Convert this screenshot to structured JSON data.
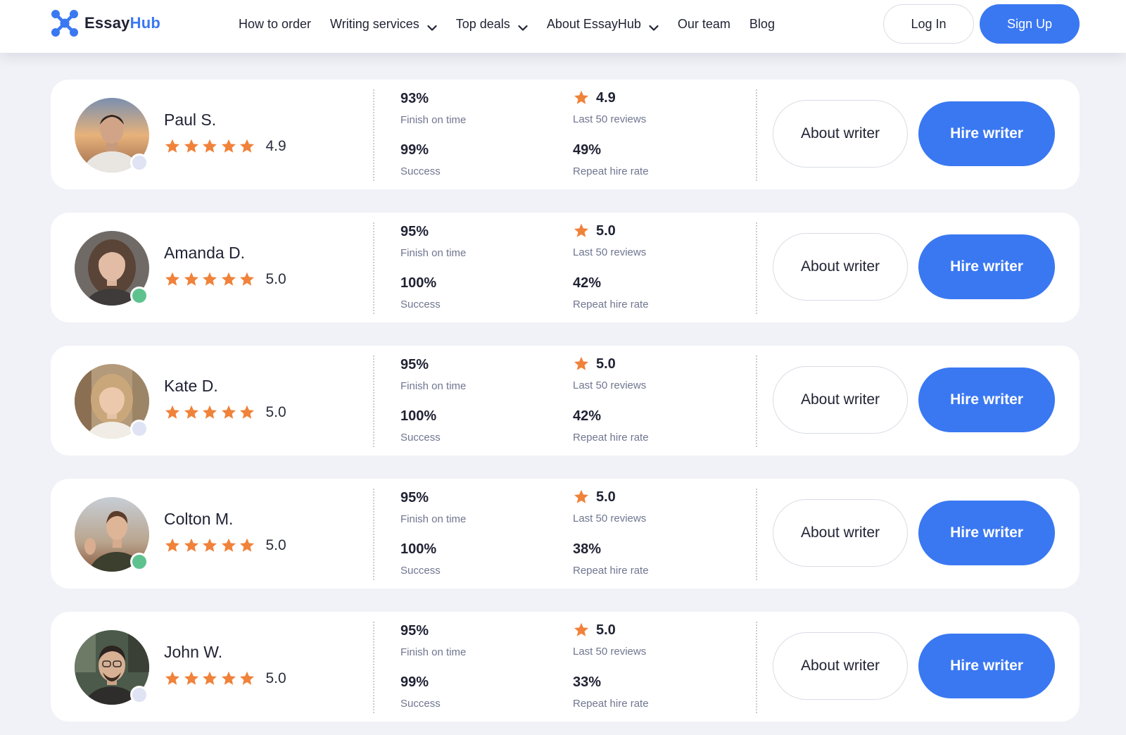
{
  "header": {
    "logo": {
      "word1": "Essay",
      "word2": "Hub"
    },
    "nav": [
      {
        "label": "How to order",
        "dropdown": false
      },
      {
        "label": "Writing services",
        "dropdown": true
      },
      {
        "label": "Top deals",
        "dropdown": true
      },
      {
        "label": "About EssayHub",
        "dropdown": true
      },
      {
        "label": "Our team",
        "dropdown": false
      },
      {
        "label": "Blog",
        "dropdown": false
      }
    ],
    "login_label": "Log In",
    "signup_label": "Sign Up"
  },
  "colors": {
    "accent": "#3a78f2",
    "star": "#f0823a",
    "online": "#5ec28f",
    "offline": "#dfe3f4"
  },
  "writers": [
    {
      "name": "Paul S.",
      "rating": "4.9",
      "stars": 5,
      "status": "offline",
      "finish_on_time": "93%",
      "finish_on_time_label": "Finish on time",
      "success": "99%",
      "success_label": "Success",
      "last_reviews": "4.9",
      "last_reviews_label": "Last 50 reviews",
      "repeat_hire": "49%",
      "repeat_hire_label": "Repeat hire rate",
      "about_label": "About writer",
      "hire_label": "Hire writer"
    },
    {
      "name": "Amanda D.",
      "rating": "5.0",
      "stars": 5,
      "status": "online",
      "finish_on_time": "95%",
      "finish_on_time_label": "Finish on time",
      "success": "100%",
      "success_label": "Success",
      "last_reviews": "5.0",
      "last_reviews_label": "Last 50 reviews",
      "repeat_hire": "42%",
      "repeat_hire_label": "Repeat hire rate",
      "about_label": "About writer",
      "hire_label": "Hire writer"
    },
    {
      "name": "Kate D.",
      "rating": "5.0",
      "stars": 5,
      "status": "offline",
      "finish_on_time": "95%",
      "finish_on_time_label": "Finish on time",
      "success": "100%",
      "success_label": "Success",
      "last_reviews": "5.0",
      "last_reviews_label": "Last 50 reviews",
      "repeat_hire": "42%",
      "repeat_hire_label": "Repeat hire rate",
      "about_label": "About writer",
      "hire_label": "Hire writer"
    },
    {
      "name": "Colton M.",
      "rating": "5.0",
      "stars": 5,
      "status": "online",
      "finish_on_time": "95%",
      "finish_on_time_label": "Finish on time",
      "success": "100%",
      "success_label": "Success",
      "last_reviews": "5.0",
      "last_reviews_label": "Last 50 reviews",
      "repeat_hire": "38%",
      "repeat_hire_label": "Repeat hire rate",
      "about_label": "About writer",
      "hire_label": "Hire writer"
    },
    {
      "name": "John W.",
      "rating": "5.0",
      "stars": 5,
      "status": "offline",
      "finish_on_time": "95%",
      "finish_on_time_label": "Finish on time",
      "success": "99%",
      "success_label": "Success",
      "last_reviews": "5.0",
      "last_reviews_label": "Last 50 reviews",
      "repeat_hire": "33%",
      "repeat_hire_label": "Repeat hire rate",
      "about_label": "About writer",
      "hire_label": "Hire writer"
    }
  ]
}
